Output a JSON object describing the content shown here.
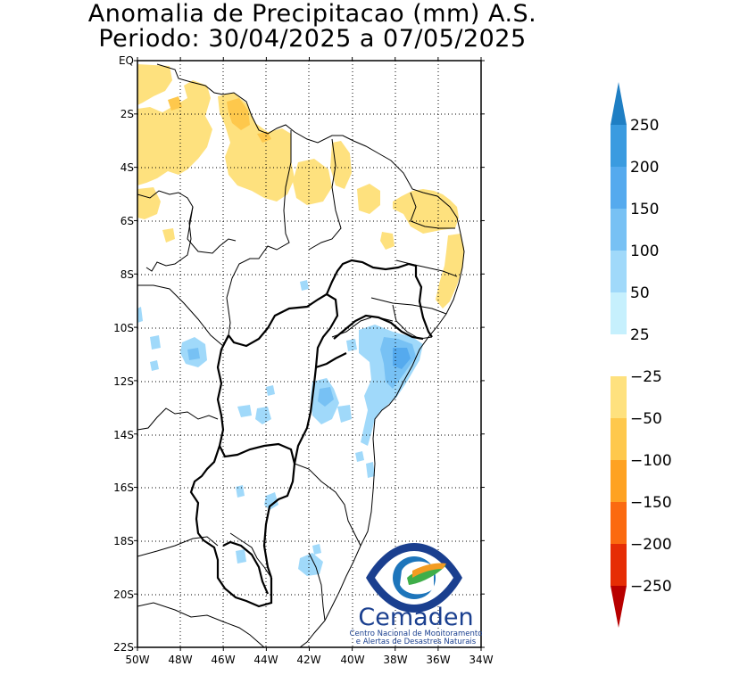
{
  "title": {
    "line1": "Anomalia de Precipitacao (mm) A.S.",
    "line2": "Periodo: 30/04/2025 a 07/05/2025"
  },
  "axes": {
    "lat_labels": [
      "EQ",
      "2S",
      "4S",
      "6S",
      "8S",
      "10S",
      "12S",
      "14S",
      "16S",
      "18S",
      "20S",
      "22S"
    ],
    "lon_labels": [
      "50W",
      "48W",
      "46W",
      "44W",
      "42W",
      "40W",
      "38W",
      "36W",
      "34W"
    ],
    "lat_values": [
      0,
      -2,
      -4,
      -6,
      -8,
      -10,
      -12,
      -14,
      -16,
      -18,
      -20,
      -22
    ],
    "lon_values": [
      -50,
      -48,
      -46,
      -44,
      -42,
      -40,
      -38,
      -36,
      -34
    ]
  },
  "colorbar": {
    "labels": [
      "250",
      "200",
      "150",
      "100",
      "50",
      "25",
      "−25",
      "−50",
      "−100",
      "−150",
      "−200",
      "−250"
    ],
    "colors": [
      "#1f7fc4",
      "#3a9be0",
      "#55aaee",
      "#77c1f4",
      "#a0d9fa",
      "#c6f0fd",
      "#ffffff",
      "#fee17e",
      "#fec84c",
      "#fea222",
      "#fb6a10",
      "#e62d05",
      "#b80000"
    ]
  },
  "logo": {
    "name": "Cemaden",
    "line1": "Centro Nacional de Monitoramento",
    "line2": "e Alertas de Desastres Naturais"
  }
}
